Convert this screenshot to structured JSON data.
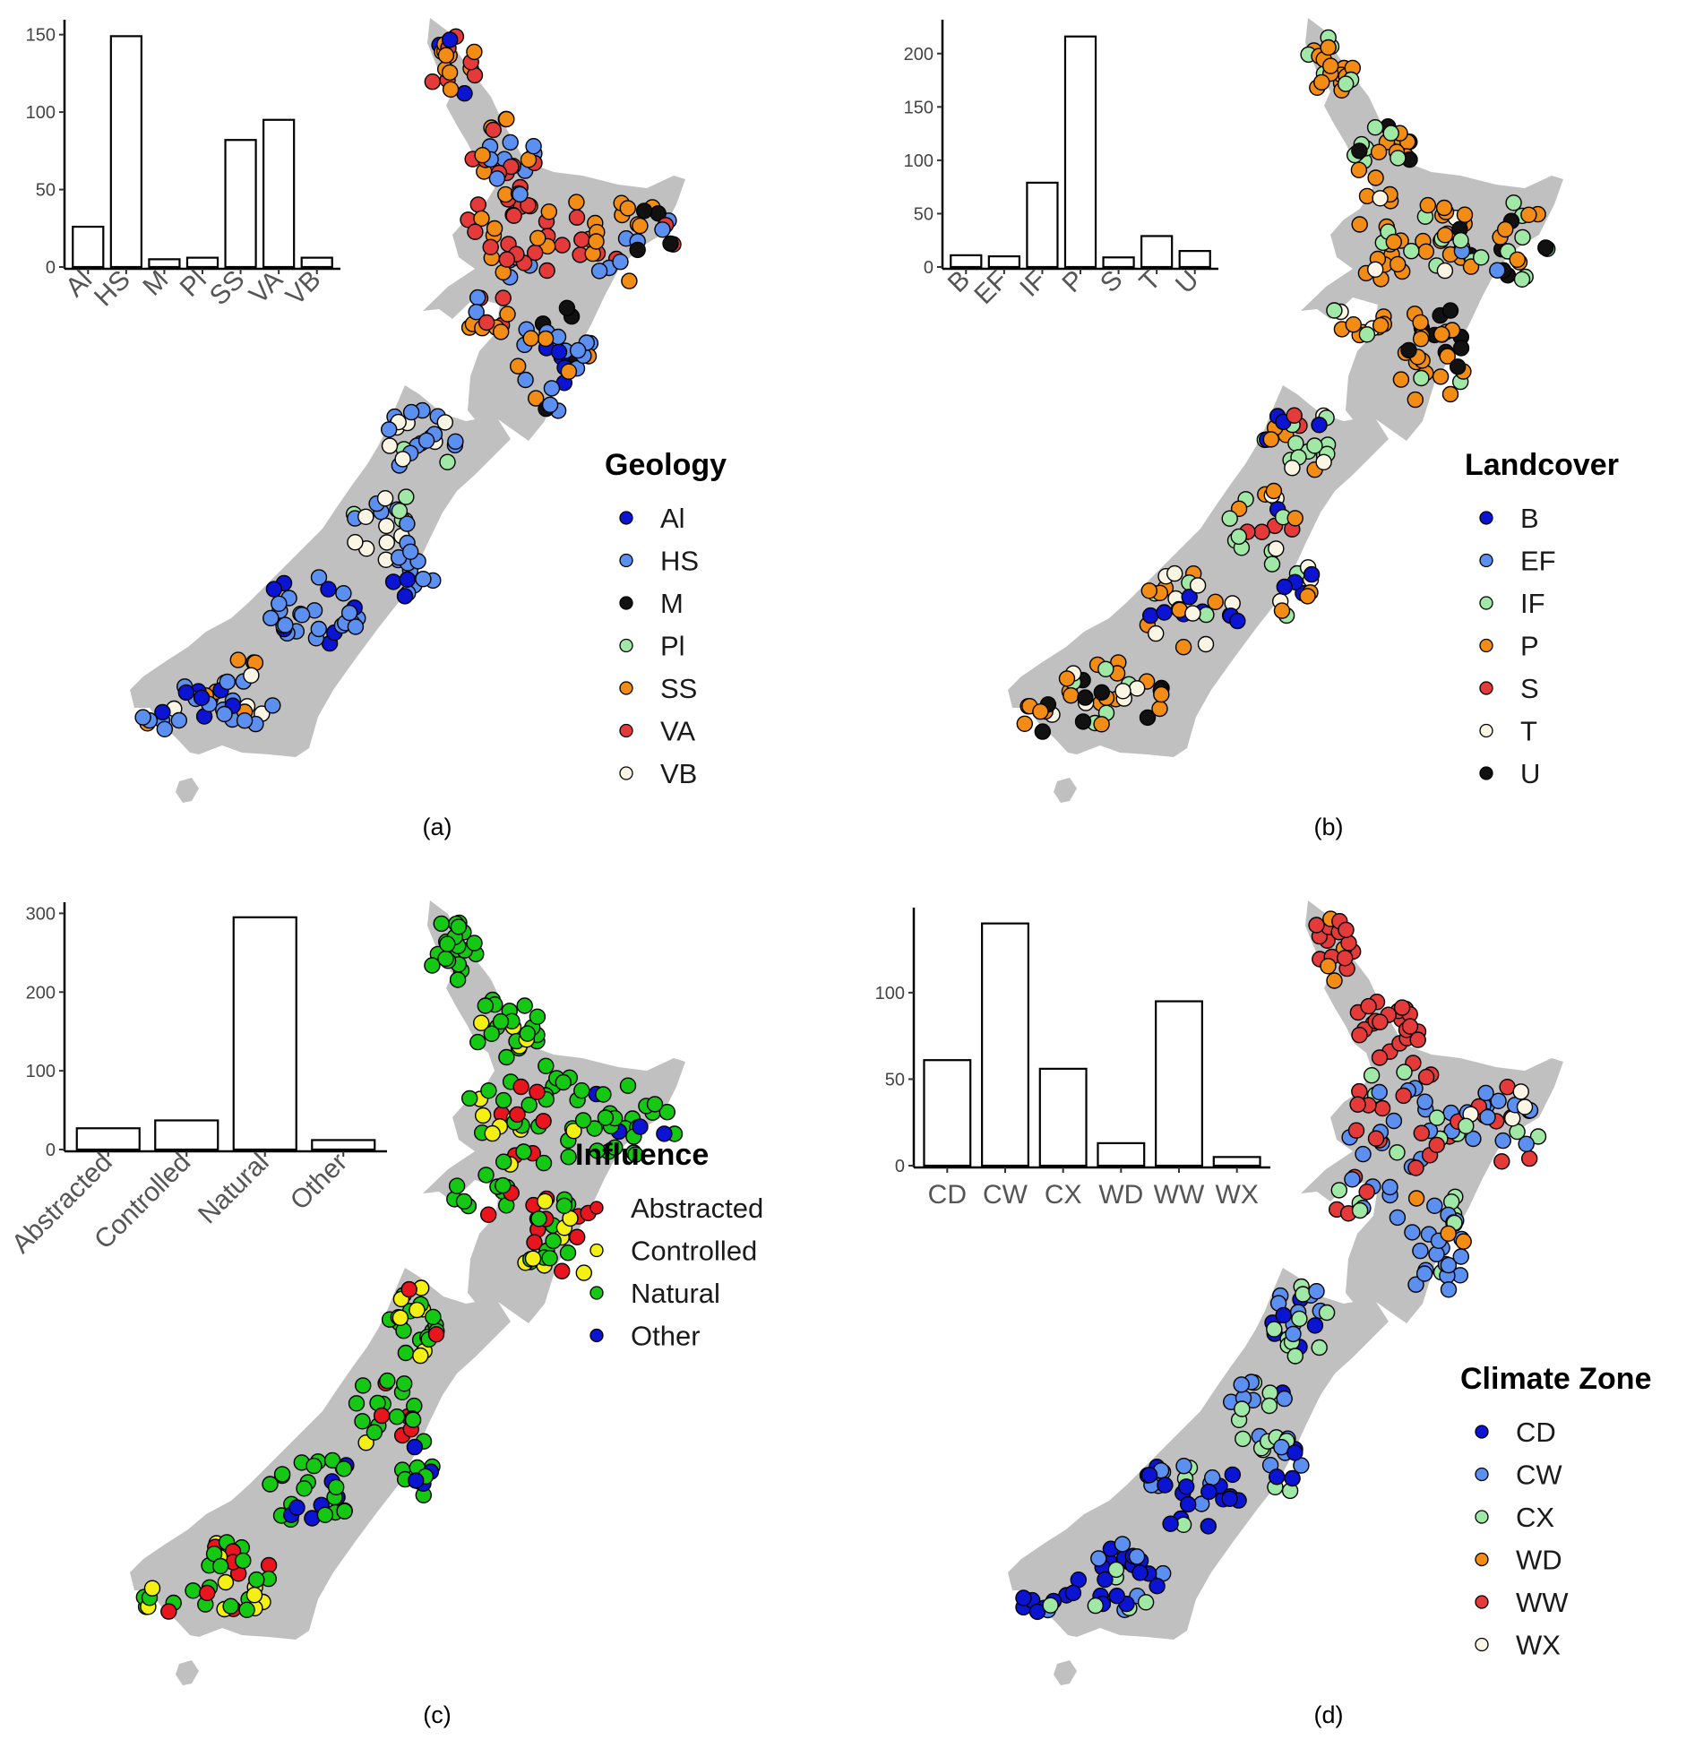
{
  "colors": {
    "land": "#c0c0c0",
    "dot_stroke": "#000000"
  },
  "panels": [
    {
      "id": "a",
      "caption": "(a)",
      "legend_title": "Geology",
      "categories": [
        {
          "code": "Al",
          "color": "#0a14d2"
        },
        {
          "code": "HS",
          "color": "#5b8ff0"
        },
        {
          "code": "M",
          "color": "#111111"
        },
        {
          "code": "Pl",
          "color": "#9fe8a6"
        },
        {
          "code": "SS",
          "color": "#f28c14"
        },
        {
          "code": "VA",
          "color": "#e53a3a"
        },
        {
          "code": "VB",
          "color": "#fbf5e4"
        }
      ],
      "chart_data": {
        "type": "bar",
        "categories": [
          "Al",
          "HS",
          "M",
          "Pl",
          "SS",
          "VA",
          "VB"
        ],
        "values": [
          26,
          149,
          5,
          6,
          82,
          95,
          6
        ],
        "ylim": [
          0,
          155
        ],
        "yticks": [
          0,
          50,
          100,
          150
        ],
        "rotated_labels": true
      },
      "map_mix": {
        "north_far": [
          "SS",
          "VA",
          "SS",
          "Al"
        ],
        "north_upper": [
          "VA",
          "SS",
          "VA",
          "HS"
        ],
        "north_mid": [
          "VA",
          "SS",
          "VA",
          "VA",
          "HS",
          "SS"
        ],
        "north_east": [
          "SS",
          "VA",
          "SS",
          "HS",
          "M"
        ],
        "north_south": [
          "HS",
          "HS",
          "SS",
          "HS",
          "Al",
          "M"
        ],
        "south_north": [
          "HS",
          "Pl",
          "HS",
          "VB",
          "HS"
        ],
        "south_mid": [
          "HS",
          "HS",
          "Al",
          "HS",
          "HS"
        ],
        "south_south": [
          "HS",
          "HS",
          "SS",
          "Al",
          "HS",
          "VB"
        ]
      }
    },
    {
      "id": "b",
      "caption": "(b)",
      "legend_title": "Landcover",
      "categories": [
        {
          "code": "B",
          "color": "#0a14d2"
        },
        {
          "code": "EF",
          "color": "#5b8ff0"
        },
        {
          "code": "IF",
          "color": "#9fe8a6"
        },
        {
          "code": "P",
          "color": "#f28c14"
        },
        {
          "code": "S",
          "color": "#e53a3a"
        },
        {
          "code": "T",
          "color": "#fbf5e4"
        },
        {
          "code": "U",
          "color": "#111111"
        }
      ],
      "chart_data": {
        "type": "bar",
        "categories": [
          "B",
          "EF",
          "IF",
          "P",
          "S",
          "T",
          "U"
        ],
        "values": [
          11,
          10,
          79,
          216,
          9,
          29,
          15
        ],
        "ylim": [
          0,
          225
        ],
        "yticks": [
          0,
          50,
          100,
          150,
          200
        ],
        "rotated_labels": true
      },
      "map_mix": {
        "north_far": [
          "P",
          "P",
          "IF",
          "P"
        ],
        "north_upper": [
          "P",
          "IF",
          "P",
          "U",
          "IF"
        ],
        "north_mid": [
          "P",
          "P",
          "IF",
          "P",
          "T",
          "P"
        ],
        "north_east": [
          "IF",
          "P",
          "IF",
          "P",
          "U",
          "EF"
        ],
        "north_south": [
          "P",
          "P",
          "IF",
          "P",
          "U",
          "P"
        ],
        "south_north": [
          "IF",
          "IF",
          "P",
          "B",
          "T",
          "S"
        ],
        "south_mid": [
          "T",
          "IF",
          "P",
          "T",
          "B",
          "P"
        ],
        "south_south": [
          "P",
          "T",
          "P",
          "IF",
          "P",
          "U"
        ]
      }
    },
    {
      "id": "c",
      "caption": "(c)",
      "legend_title": "Influence",
      "categories": [
        {
          "code": "Abstracted",
          "color": "#e8141e"
        },
        {
          "code": "Controlled",
          "color": "#f5f014"
        },
        {
          "code": "Natural",
          "color": "#14c814"
        },
        {
          "code": "Other",
          "color": "#0a14d2"
        }
      ],
      "chart_data": {
        "type": "bar",
        "categories": [
          "Abstracted",
          "Controlled",
          "Natural",
          "Other"
        ],
        "values": [
          27,
          37,
          295,
          12
        ],
        "ylim": [
          0,
          305
        ],
        "yticks": [
          0,
          100,
          200,
          300
        ],
        "rotated_labels": true
      },
      "map_mix": {
        "north_far": [
          "Natural",
          "Natural",
          "Controlled",
          "Natural"
        ],
        "north_upper": [
          "Natural",
          "Natural",
          "Natural",
          "Controlled"
        ],
        "north_mid": [
          "Natural",
          "Abstracted",
          "Natural",
          "Controlled",
          "Natural"
        ],
        "north_east": [
          "Natural",
          "Natural",
          "Other",
          "Natural"
        ],
        "north_south": [
          "Abstracted",
          "Natural",
          "Controlled",
          "Natural",
          "Natural"
        ],
        "south_north": [
          "Natural",
          "Natural",
          "Controlled",
          "Natural",
          "Abstracted"
        ],
        "south_mid": [
          "Natural",
          "Natural",
          "Other",
          "Natural",
          "Natural"
        ],
        "south_south": [
          "Natural",
          "Controlled",
          "Natural",
          "Abstracted",
          "Natural"
        ]
      }
    },
    {
      "id": "d",
      "caption": "(d)",
      "legend_title": "Climate Zone",
      "categories": [
        {
          "code": "CD",
          "color": "#0a14d2"
        },
        {
          "code": "CW",
          "color": "#5b8ff0"
        },
        {
          "code": "CX",
          "color": "#9fe8a6"
        },
        {
          "code": "WD",
          "color": "#f28c14"
        },
        {
          "code": "WW",
          "color": "#e53a3a"
        },
        {
          "code": "WX",
          "color": "#fbf5e4"
        }
      ],
      "chart_data": {
        "type": "bar",
        "categories": [
          "CD",
          "CW",
          "CX",
          "WD",
          "WW",
          "WX"
        ],
        "values": [
          61,
          140,
          56,
          13,
          95,
          5
        ],
        "ylim": [
          0,
          145
        ],
        "yticks": [
          0,
          50,
          100
        ],
        "rotated_labels": false
      },
      "map_mix": {
        "north_far": [
          "WW",
          "WW",
          "WW",
          "WD"
        ],
        "north_upper": [
          "WW",
          "WW",
          "WW",
          "WW"
        ],
        "north_mid": [
          "WW",
          "CW",
          "WW",
          "CX",
          "CW"
        ],
        "north_east": [
          "CW",
          "WW",
          "CX",
          "CW",
          "WX"
        ],
        "north_south": [
          "CW",
          "CW",
          "CX",
          "WD",
          "CW"
        ],
        "south_north": [
          "CX",
          "CW",
          "CX",
          "CD",
          "CW"
        ],
        "south_mid": [
          "CW",
          "CD",
          "CX",
          "CD",
          "CW"
        ],
        "south_south": [
          "CD",
          "CW",
          "CD",
          "CX",
          "CD"
        ]
      }
    }
  ]
}
